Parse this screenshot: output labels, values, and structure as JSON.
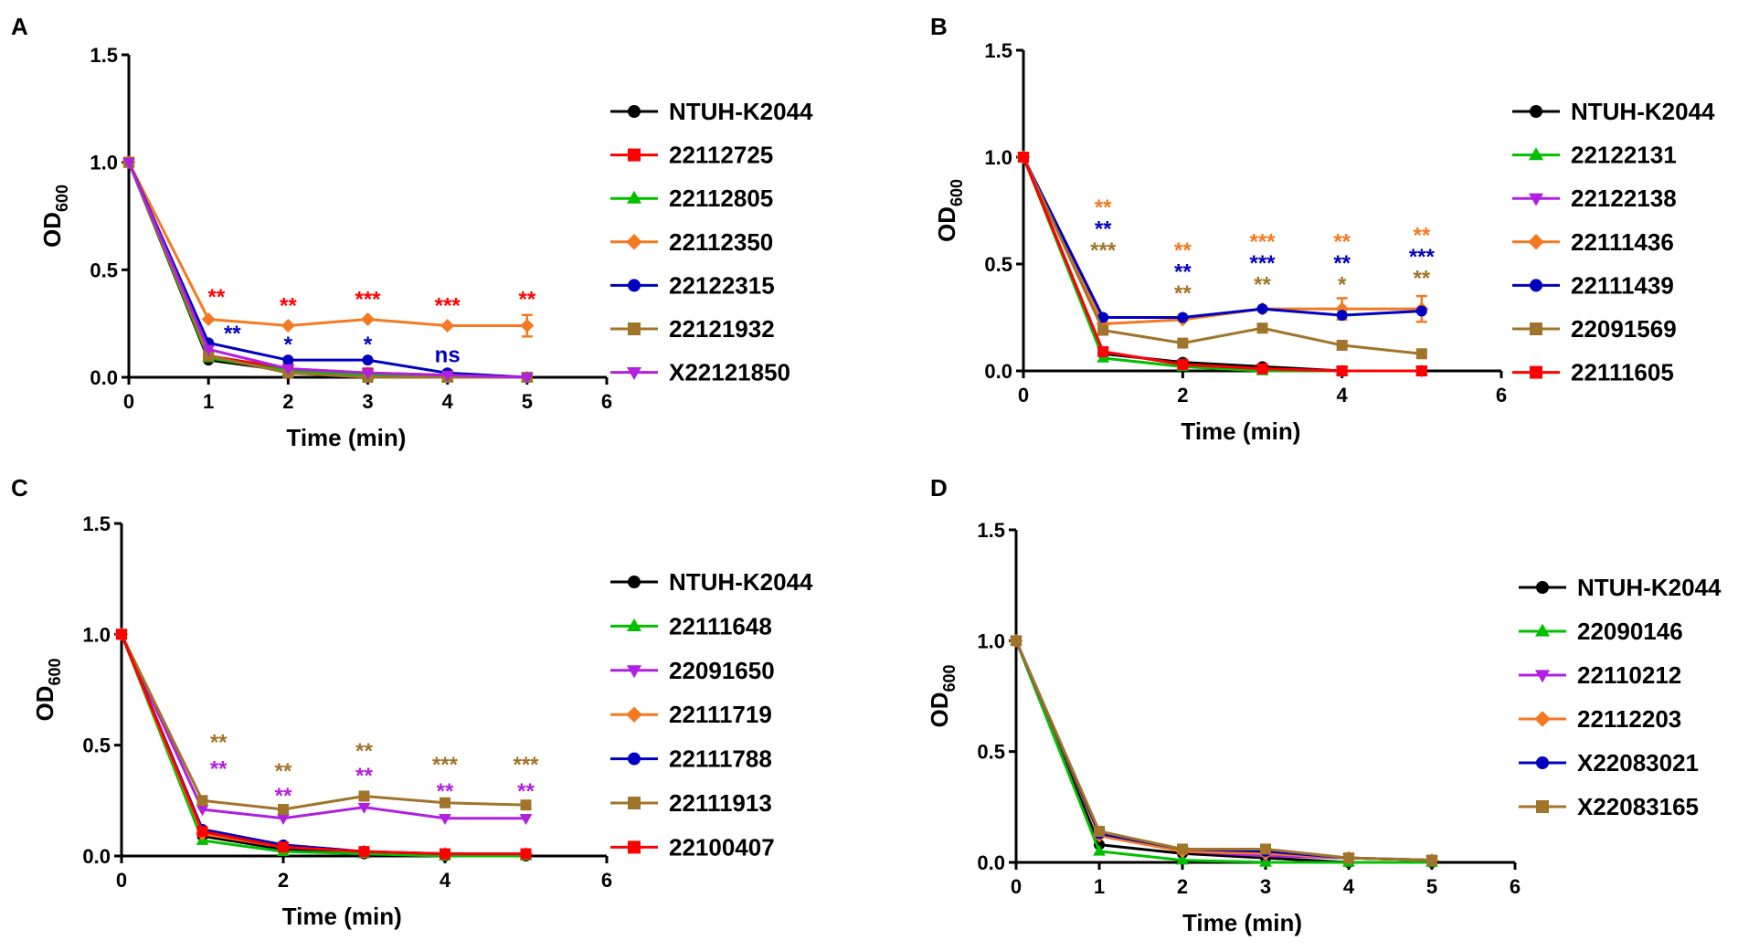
{
  "chart_data": [
    {
      "panel": "A",
      "type": "line",
      "xlabel": "Time (min)",
      "ylabel": "OD",
      "ylabel_sub": "600",
      "xlim": [
        0,
        6
      ],
      "ylim": [
        0,
        1.5
      ],
      "xticks": [
        "0",
        "1",
        "2",
        "3",
        "4",
        "5",
        "6"
      ],
      "yticks": [
        "0.0",
        "0.5",
        "1.0",
        "1.5"
      ],
      "x": [
        0,
        1,
        2,
        3,
        4,
        5
      ],
      "series": [
        {
          "name": "NTUH-K2044",
          "color": "#000000",
          "marker": "circle",
          "values": [
            1.0,
            0.08,
            0.03,
            0.02,
            0.0,
            0.0
          ]
        },
        {
          "name": "22112725",
          "color": "#ff0000",
          "marker": "square",
          "values": [
            1.0,
            0.1,
            0.04,
            0.02,
            0.01,
            0.0
          ]
        },
        {
          "name": "22112805",
          "color": "#00c000",
          "marker": "triangle-up",
          "values": [
            1.0,
            0.09,
            0.03,
            0.01,
            0.0,
            0.0
          ]
        },
        {
          "name": "22112350",
          "color": "#f47920",
          "marker": "diamond",
          "values": [
            1.0,
            0.27,
            0.24,
            0.27,
            0.24,
            0.24
          ],
          "err": [
            0,
            0,
            0,
            0,
            0,
            0.05
          ]
        },
        {
          "name": "22122315",
          "color": "#0000c0",
          "marker": "circle",
          "values": [
            1.0,
            0.16,
            0.08,
            0.08,
            0.02,
            0.0
          ]
        },
        {
          "name": "22121932",
          "color": "#a0742a",
          "marker": "square",
          "values": [
            1.0,
            0.1,
            0.02,
            0.0,
            0.0,
            0.0
          ]
        },
        {
          "name": "X22121850",
          "color": "#b020e0",
          "marker": "triangle-down",
          "values": [
            1.0,
            0.13,
            0.04,
            0.02,
            0.01,
            0.0
          ]
        }
      ],
      "annotations": [
        {
          "text": "**",
          "x": 1.1,
          "y": 0.34,
          "color": "#ff0000"
        },
        {
          "text": "**",
          "x": 1.3,
          "y": 0.17,
          "color": "#0000c0"
        },
        {
          "text": "**",
          "x": 2.0,
          "y": 0.3,
          "color": "#ff0000"
        },
        {
          "text": "*",
          "x": 2.0,
          "y": 0.12,
          "color": "#0000c0"
        },
        {
          "text": "***",
          "x": 3.0,
          "y": 0.33,
          "color": "#ff0000"
        },
        {
          "text": "*",
          "x": 3.0,
          "y": 0.12,
          "color": "#0000c0"
        },
        {
          "text": "***",
          "x": 4.0,
          "y": 0.3,
          "color": "#ff0000"
        },
        {
          "text": "ns",
          "x": 4.0,
          "y": 0.07,
          "color": "#0000c0"
        },
        {
          "text": "**",
          "x": 5.0,
          "y": 0.33,
          "color": "#ff0000"
        }
      ]
    },
    {
      "panel": "B",
      "type": "line",
      "xlabel": "Time (min)",
      "ylabel": "OD",
      "ylabel_sub": "600",
      "xlim": [
        0,
        6
      ],
      "ylim": [
        0,
        1.5
      ],
      "xticks": [
        "0",
        "2",
        "4",
        "6"
      ],
      "yticks": [
        "0.0",
        "0.5",
        "1.0",
        "1.5"
      ],
      "x": [
        0,
        1,
        2,
        3,
        4,
        5
      ],
      "series": [
        {
          "name": "NTUH-K2044",
          "color": "#000000",
          "marker": "circle",
          "values": [
            1.0,
            0.08,
            0.04,
            0.02,
            0.0,
            0.0
          ]
        },
        {
          "name": "22122131",
          "color": "#00c000",
          "marker": "triangle-up",
          "values": [
            1.0,
            0.06,
            0.02,
            0.0,
            0.0,
            0.0
          ]
        },
        {
          "name": "22122138",
          "color": "#b020e0",
          "marker": "triangle-down",
          "values": [
            1.0,
            0.09,
            0.03,
            0.01,
            0.0,
            0.0
          ]
        },
        {
          "name": "22111436",
          "color": "#f47920",
          "marker": "diamond",
          "values": [
            1.0,
            0.22,
            0.24,
            0.29,
            0.29,
            0.29
          ],
          "err": [
            0,
            0,
            0,
            0,
            0.05,
            0.06
          ]
        },
        {
          "name": "22111439",
          "color": "#0000c0",
          "marker": "circle",
          "values": [
            1.0,
            0.25,
            0.25,
            0.29,
            0.26,
            0.28
          ]
        },
        {
          "name": "22091569",
          "color": "#a0742a",
          "marker": "square",
          "values": [
            1.0,
            0.19,
            0.13,
            0.2,
            0.12,
            0.08
          ]
        },
        {
          "name": "22111605",
          "color": "#ff0000",
          "marker": "square",
          "values": [
            1.0,
            0.09,
            0.03,
            0.01,
            0.0,
            0.0
          ]
        }
      ],
      "annotations": [
        {
          "text": "**",
          "x": 1.0,
          "y": 0.73,
          "color": "#f47920"
        },
        {
          "text": "**",
          "x": 1.0,
          "y": 0.63,
          "color": "#0000c0"
        },
        {
          "text": "***",
          "x": 1.0,
          "y": 0.53,
          "color": "#a0742a"
        },
        {
          "text": "**",
          "x": 2.0,
          "y": 0.53,
          "color": "#f47920"
        },
        {
          "text": "**",
          "x": 2.0,
          "y": 0.43,
          "color": "#0000c0"
        },
        {
          "text": "**",
          "x": 2.0,
          "y": 0.33,
          "color": "#a0742a"
        },
        {
          "text": "***",
          "x": 3.0,
          "y": 0.57,
          "color": "#f47920"
        },
        {
          "text": "***",
          "x": 3.0,
          "y": 0.47,
          "color": "#0000c0"
        },
        {
          "text": "**",
          "x": 3.0,
          "y": 0.37,
          "color": "#a0742a"
        },
        {
          "text": "**",
          "x": 4.0,
          "y": 0.57,
          "color": "#f47920"
        },
        {
          "text": "**",
          "x": 4.0,
          "y": 0.47,
          "color": "#0000c0"
        },
        {
          "text": "*",
          "x": 4.0,
          "y": 0.37,
          "color": "#a0742a"
        },
        {
          "text": "**",
          "x": 5.0,
          "y": 0.6,
          "color": "#f47920"
        },
        {
          "text": "***",
          "x": 5.0,
          "y": 0.5,
          "color": "#0000c0"
        },
        {
          "text": "**",
          "x": 5.0,
          "y": 0.4,
          "color": "#a0742a"
        }
      ]
    },
    {
      "panel": "C",
      "type": "line",
      "xlabel": "Time (min)",
      "ylabel": "OD",
      "ylabel_sub": "600",
      "xlim": [
        0,
        6
      ],
      "ylim": [
        0,
        1.5
      ],
      "xticks": [
        "0",
        "2",
        "4",
        "6"
      ],
      "yticks": [
        "0.0",
        "0.5",
        "1.0",
        "1.5"
      ],
      "x": [
        0,
        1,
        2,
        3,
        4,
        5
      ],
      "series": [
        {
          "name": "NTUH-K2044",
          "color": "#000000",
          "marker": "circle",
          "values": [
            1.0,
            0.09,
            0.03,
            0.01,
            0.0,
            0.0
          ]
        },
        {
          "name": "22111648",
          "color": "#00c000",
          "marker": "triangle-up",
          "values": [
            1.0,
            0.07,
            0.02,
            0.01,
            0.0,
            0.0
          ]
        },
        {
          "name": "22091650",
          "color": "#b020e0",
          "marker": "triangle-down",
          "values": [
            1.0,
            0.21,
            0.17,
            0.22,
            0.17,
            0.17
          ]
        },
        {
          "name": "22111719",
          "color": "#f47920",
          "marker": "diamond",
          "values": [
            1.0,
            0.1,
            0.04,
            0.02,
            0.01,
            0.01
          ]
        },
        {
          "name": "22111788",
          "color": "#0000c0",
          "marker": "circle",
          "values": [
            1.0,
            0.12,
            0.05,
            0.02,
            0.01,
            0.01
          ]
        },
        {
          "name": "22111913",
          "color": "#a0742a",
          "marker": "square",
          "values": [
            1.0,
            0.25,
            0.21,
            0.27,
            0.24,
            0.23
          ]
        },
        {
          "name": "22100407",
          "color": "#ff0000",
          "marker": "square",
          "values": [
            1.0,
            0.11,
            0.04,
            0.02,
            0.01,
            0.01
          ]
        }
      ],
      "annotations": [
        {
          "text": "**",
          "x": 1.2,
          "y": 0.48,
          "color": "#a0742a"
        },
        {
          "text": "**",
          "x": 1.2,
          "y": 0.36,
          "color": "#b020e0"
        },
        {
          "text": "**",
          "x": 2.0,
          "y": 0.35,
          "color": "#a0742a"
        },
        {
          "text": "**",
          "x": 2.0,
          "y": 0.24,
          "color": "#b020e0"
        },
        {
          "text": "**",
          "x": 3.0,
          "y": 0.44,
          "color": "#a0742a"
        },
        {
          "text": "**",
          "x": 3.0,
          "y": 0.33,
          "color": "#b020e0"
        },
        {
          "text": "***",
          "x": 4.0,
          "y": 0.38,
          "color": "#a0742a"
        },
        {
          "text": "**",
          "x": 4.0,
          "y": 0.26,
          "color": "#b020e0"
        },
        {
          "text": "***",
          "x": 5.0,
          "y": 0.38,
          "color": "#a0742a"
        },
        {
          "text": "**",
          "x": 5.0,
          "y": 0.26,
          "color": "#b020e0"
        }
      ]
    },
    {
      "panel": "D",
      "type": "line",
      "xlabel": "Time (min)",
      "ylabel": "OD",
      "ylabel_sub": "600",
      "xlim": [
        0,
        6
      ],
      "ylim": [
        0,
        1.5
      ],
      "xticks": [
        "0",
        "1",
        "2",
        "3",
        "4",
        "5",
        "6"
      ],
      "yticks": [
        "0.0",
        "0.5",
        "1.0",
        "1.5"
      ],
      "x": [
        0,
        1,
        2,
        3,
        4,
        5
      ],
      "series": [
        {
          "name": "NTUH-K2044",
          "color": "#000000",
          "marker": "circle",
          "values": [
            1.0,
            0.08,
            0.04,
            0.02,
            0.0,
            0.0
          ]
        },
        {
          "name": "22090146",
          "color": "#00c000",
          "marker": "triangle-up",
          "values": [
            1.0,
            0.05,
            0.01,
            0.0,
            0.0,
            0.0
          ]
        },
        {
          "name": "22110212",
          "color": "#b020e0",
          "marker": "triangle-down",
          "values": [
            1.0,
            0.13,
            0.05,
            0.03,
            0.02,
            0.01
          ]
        },
        {
          "name": "22112203",
          "color": "#f47920",
          "marker": "diamond",
          "values": [
            1.0,
            0.12,
            0.05,
            0.04,
            0.02,
            0.01
          ]
        },
        {
          "name": "X22083021",
          "color": "#0000c0",
          "marker": "circle",
          "values": [
            1.0,
            0.13,
            0.06,
            0.05,
            0.02,
            0.01
          ]
        },
        {
          "name": "X22083165",
          "color": "#a0742a",
          "marker": "square",
          "values": [
            1.0,
            0.14,
            0.06,
            0.06,
            0.02,
            0.01
          ]
        }
      ],
      "annotations": []
    }
  ]
}
